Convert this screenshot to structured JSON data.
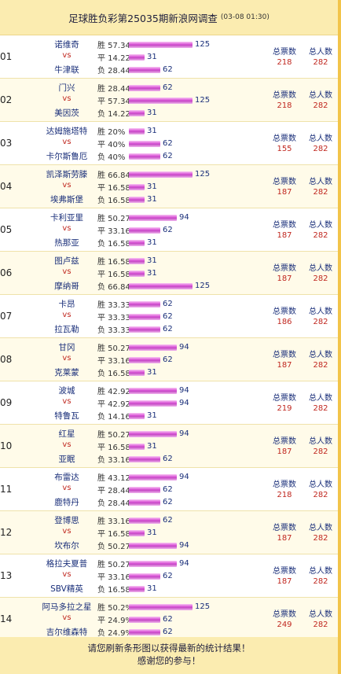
{
  "header": {
    "title": "足球胜负彩第25035期新浪网调查",
    "time": "(03-08 01:30)"
  },
  "labels": {
    "vs": "vs",
    "total_votes": "总票数",
    "total_people": "总人数"
  },
  "matches": [
    {
      "num": "01",
      "home": "诺维奇",
      "away": "牛津联",
      "rows": [
        {
          "l": "胜 57.34%",
          "c": 125
        },
        {
          "l": "平 14.22%",
          "c": 31
        },
        {
          "l": "负 28.44%",
          "c": 62
        }
      ],
      "votes": "218",
      "people": "282"
    },
    {
      "num": "02",
      "home": "门兴",
      "away": "美因茨",
      "rows": [
        {
          "l": "胜 28.44%",
          "c": 62
        },
        {
          "l": "平 57.34%",
          "c": 125
        },
        {
          "l": "负 14.22%",
          "c": 31
        }
      ],
      "votes": "218",
      "people": "282"
    },
    {
      "num": "03",
      "home": "达姆施塔特",
      "away": "卡尔斯鲁厄",
      "rows": [
        {
          "l": "胜 20%",
          "c": 31
        },
        {
          "l": "平 40%",
          "c": 62
        },
        {
          "l": "负 40%",
          "c": 62
        }
      ],
      "votes": "155",
      "people": "282"
    },
    {
      "num": "04",
      "home": "凯泽斯劳滕",
      "away": "埃弗斯堡",
      "rows": [
        {
          "l": "胜 66.84%",
          "c": 125
        },
        {
          "l": "平 16.58%",
          "c": 31
        },
        {
          "l": "负 16.58%",
          "c": 31
        }
      ],
      "votes": "187",
      "people": "282"
    },
    {
      "num": "05",
      "home": "卡利亚里",
      "away": "热那亚",
      "rows": [
        {
          "l": "胜 50.27%",
          "c": 94
        },
        {
          "l": "平 33.16%",
          "c": 62
        },
        {
          "l": "负 16.58%",
          "c": 31
        }
      ],
      "votes": "187",
      "people": "282"
    },
    {
      "num": "06",
      "home": "图卢兹",
      "away": "摩纳哥",
      "rows": [
        {
          "l": "胜 16.58%",
          "c": 31
        },
        {
          "l": "平 16.58%",
          "c": 31
        },
        {
          "l": "负 66.84%",
          "c": 125
        }
      ],
      "votes": "187",
      "people": "282"
    },
    {
      "num": "07",
      "home": "卡昂",
      "away": "拉瓦勒",
      "rows": [
        {
          "l": "胜 33.33%",
          "c": 62
        },
        {
          "l": "平 33.33%",
          "c": 62
        },
        {
          "l": "负 33.33%",
          "c": 62
        }
      ],
      "votes": "186",
      "people": "282"
    },
    {
      "num": "08",
      "home": "甘冈",
      "away": "克莱蒙",
      "rows": [
        {
          "l": "胜 50.27%",
          "c": 94
        },
        {
          "l": "平 33.16%",
          "c": 62
        },
        {
          "l": "负 16.58%",
          "c": 31
        }
      ],
      "votes": "187",
      "people": "282"
    },
    {
      "num": "09",
      "home": "波城",
      "away": "特鲁瓦",
      "rows": [
        {
          "l": "胜 42.92%",
          "c": 94
        },
        {
          "l": "平 42.92%",
          "c": 94
        },
        {
          "l": "负 14.16%",
          "c": 31
        }
      ],
      "votes": "219",
      "people": "282"
    },
    {
      "num": "10",
      "home": "红星",
      "away": "亚眠",
      "rows": [
        {
          "l": "胜 50.27%",
          "c": 94
        },
        {
          "l": "平 16.58%",
          "c": 31
        },
        {
          "l": "负 33.16%",
          "c": 62
        }
      ],
      "votes": "187",
      "people": "282"
    },
    {
      "num": "11",
      "home": "布雷达",
      "away": "鹿特丹",
      "rows": [
        {
          "l": "胜 43.12%",
          "c": 94
        },
        {
          "l": "平 28.44%",
          "c": 62
        },
        {
          "l": "负 28.44%",
          "c": 62
        }
      ],
      "votes": "218",
      "people": "282"
    },
    {
      "num": "12",
      "home": "登博思",
      "away": "坎布尔",
      "rows": [
        {
          "l": "胜 33.16%",
          "c": 62
        },
        {
          "l": "平 16.58%",
          "c": 31
        },
        {
          "l": "负 50.27%",
          "c": 94
        }
      ],
      "votes": "187",
      "people": "282"
    },
    {
      "num": "13",
      "home": "格拉夫夏普",
      "away": "SBV精英",
      "rows": [
        {
          "l": "胜 50.27%",
          "c": 94
        },
        {
          "l": "平 33.16%",
          "c": 62
        },
        {
          "l": "负 16.58%",
          "c": 31
        }
      ],
      "votes": "187",
      "people": "282"
    },
    {
      "num": "14",
      "home": "阿马多拉之星",
      "away": "吉尔维森特",
      "rows": [
        {
          "l": "胜 50.2%",
          "c": 125
        },
        {
          "l": "平 24.9%",
          "c": 62
        },
        {
          "l": "负 24.9%",
          "c": 62
        }
      ],
      "votes": "249",
      "people": "282"
    }
  ],
  "footer": {
    "line1": "请您刷新条形图以获得最新的统计结果！",
    "line2": "感谢您的参与！"
  }
}
